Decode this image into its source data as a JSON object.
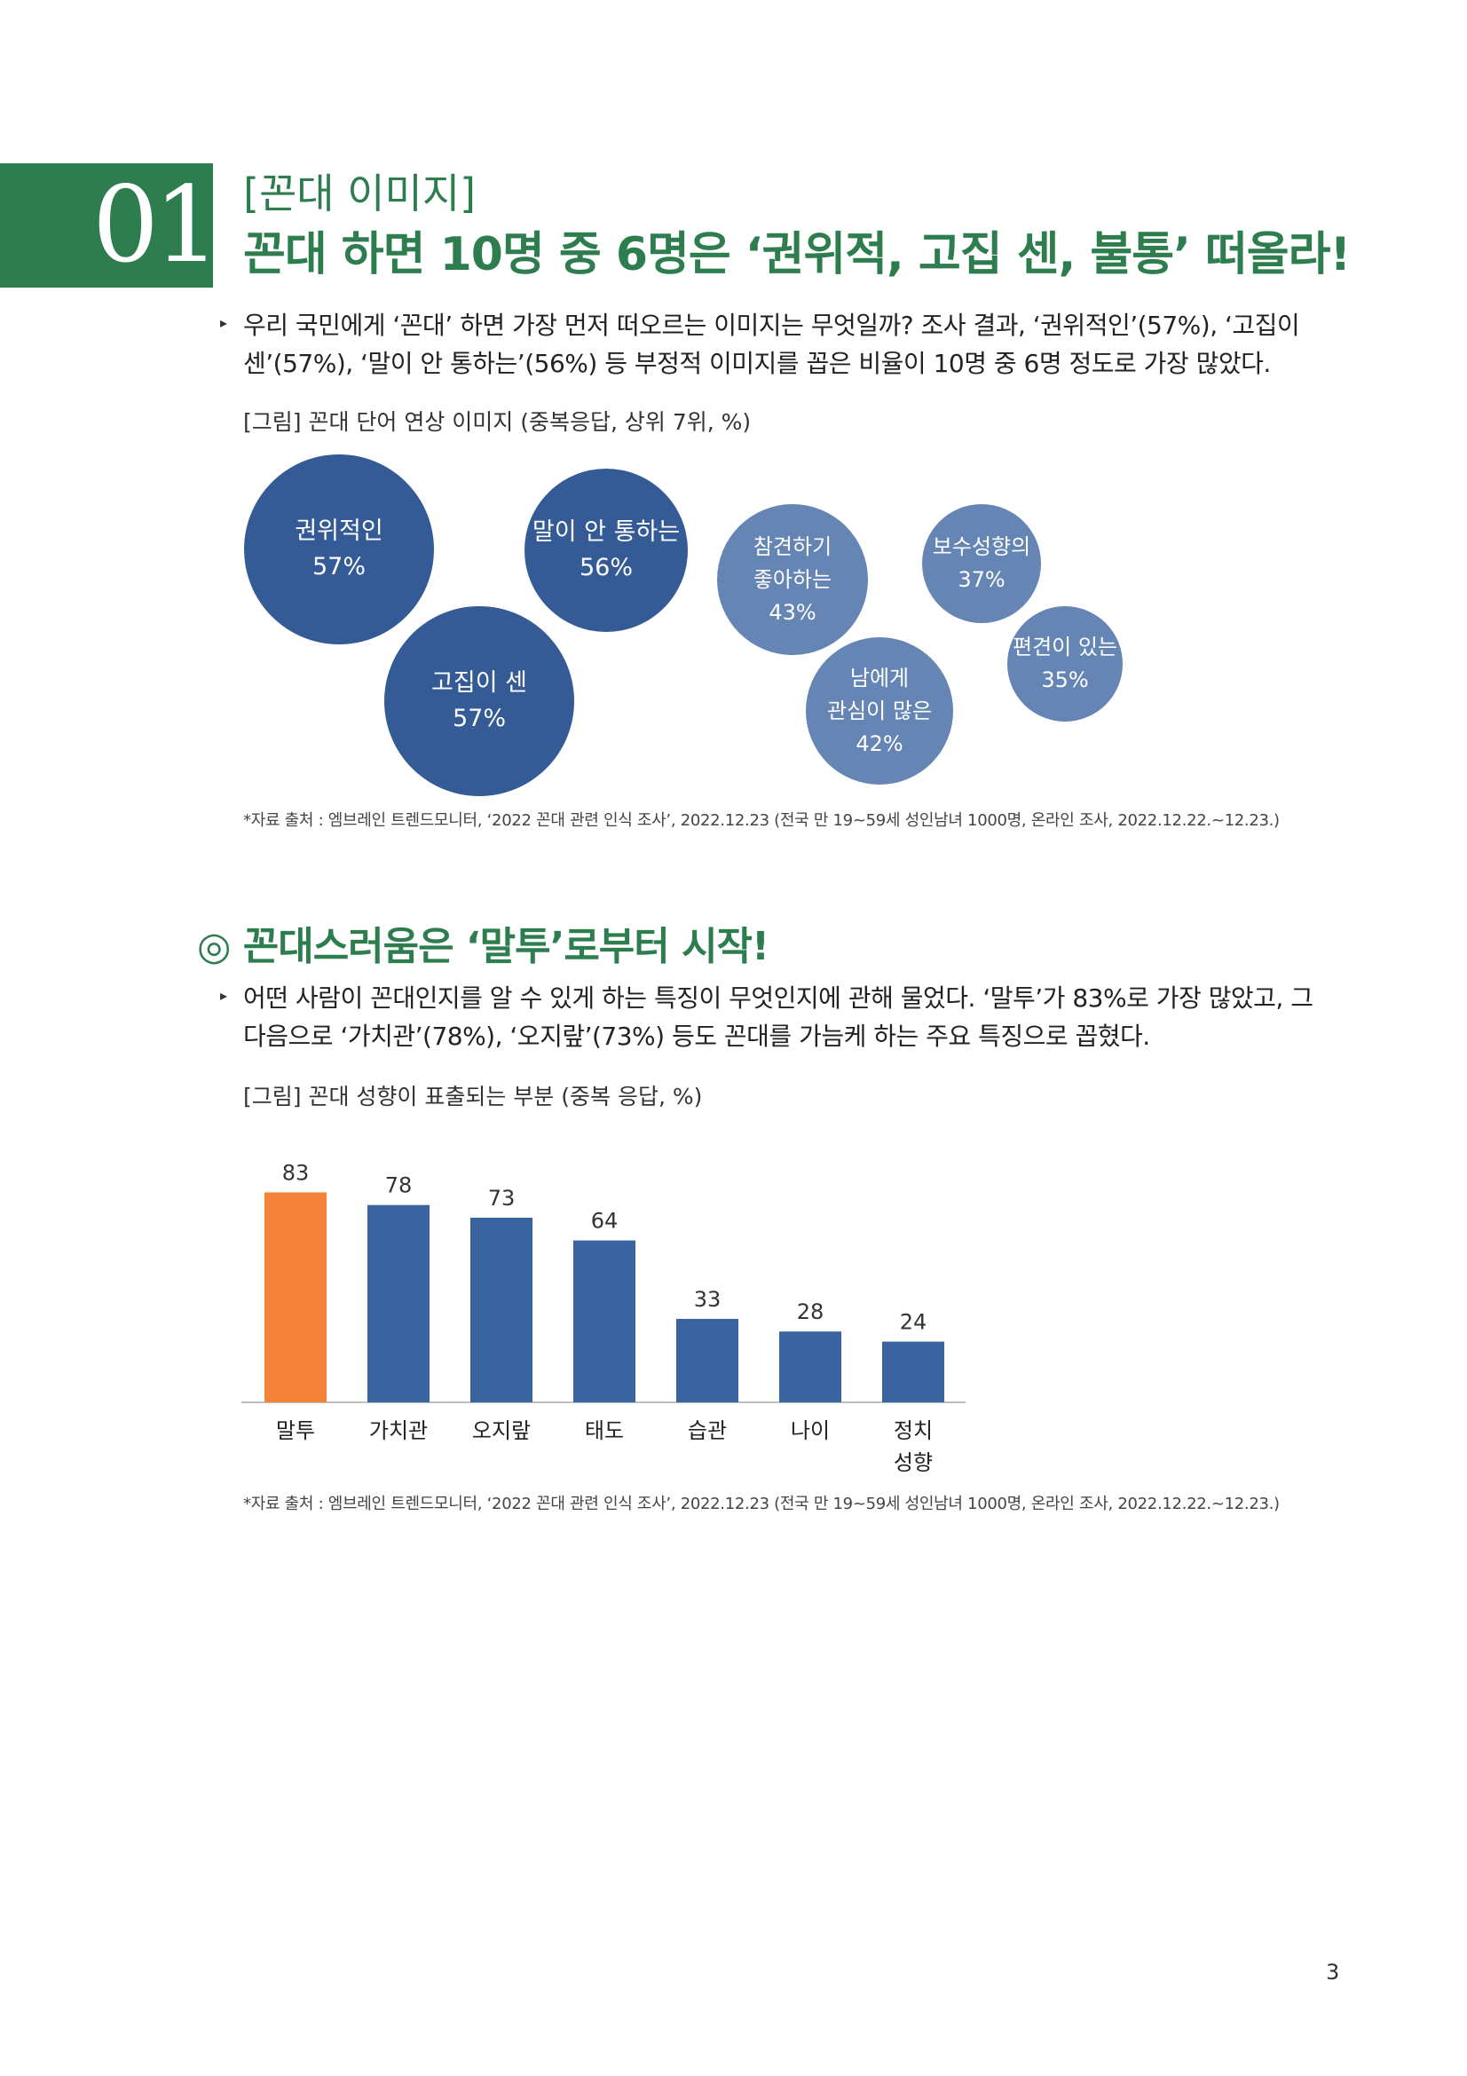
{
  "header": {
    "section_number": "01",
    "subtitle": "[꼰대 이미지]",
    "title": "꼰대 하면 10명 중 6명은 ‘권위적, 고집 센, 불통’ 떠올라!"
  },
  "para1": {
    "marker": "▸",
    "line1": "우리 국민에게 ‘꼰대’ 하면 가장 먼저 떠오르는 이미지는 무엇일까? 조사 결과, ‘권위적인’(57%), ‘고집이",
    "line2": "센’(57%), ‘말이 안 통하는’(56%) 등 부정적 이미지를 꼽은 비율이 10명 중 6명 정도로 가장 많았다."
  },
  "figure1": {
    "caption": "[그림] 꼰대 단어 연상 이미지 (중복응답, 상위 7위, %)",
    "bubbles": [
      {
        "lines": [
          "권위적인",
          "57%"
        ]
      },
      {
        "lines": [
          "고집이 센",
          "57%"
        ]
      },
      {
        "lines": [
          "말이 안 통하는",
          "56%"
        ]
      },
      {
        "lines": [
          "참견하기",
          "좋아하는",
          "43%"
        ]
      },
      {
        "lines": [
          "남에게",
          "관심이 많은",
          "42%"
        ]
      },
      {
        "lines": [
          "보수성향의",
          "37%"
        ]
      },
      {
        "lines": [
          "편견이 있는",
          "35%"
        ]
      }
    ],
    "source": "*자료 출처 : 엠브레인 트렌드모니터, ‘2022 꼰대 관련 인식 조사’, 2022.12.23 (전국 만 19~59세 성인남녀 1000명, 온라인 조사, 2022.12.22.~12.23.)"
  },
  "section2": {
    "marker": "◎",
    "title": "꼰대스러움은 ‘말투’로부터 시작!"
  },
  "para2": {
    "marker": "▸",
    "line1": "어떤 사람이 꼰대인지를 알 수 있게 하는 특징이 무엇인지에 관해 물었다. ‘말투’가 83%로 가장 많았고, 그",
    "line2": "다음으로 ‘가치관’(78%), ‘오지랖’(73%) 등도 꼰대를 가늠케 하는 주요 특징으로 꼽혔다."
  },
  "figure2": {
    "caption": "[그림] 꼰대 성향이 표출되는 부분 (중복 응답, %)",
    "source": "*자료 출처 : 엠브레인 트렌드모니터, ‘2022 꼰대 관련 인식 조사’, 2022.12.23 (전국 만 19~59세 성인남녀 1000명, 온라인 조사, 2022.12.22.~12.23.)"
  },
  "chart_data": {
    "type": "bar",
    "categories": [
      "말투",
      "가치관",
      "오지랖",
      "태도",
      "습관",
      "나이",
      "정치\n성향"
    ],
    "values": [
      83,
      78,
      73,
      64,
      33,
      28,
      24
    ],
    "highlight_index": 0,
    "colors": {
      "highlight": "#f5843a",
      "default": "#3a64a0"
    },
    "ylim": [
      0,
      100
    ],
    "title": "",
    "xlabel": "",
    "ylabel": "",
    "grid": false
  },
  "page_number": "3"
}
